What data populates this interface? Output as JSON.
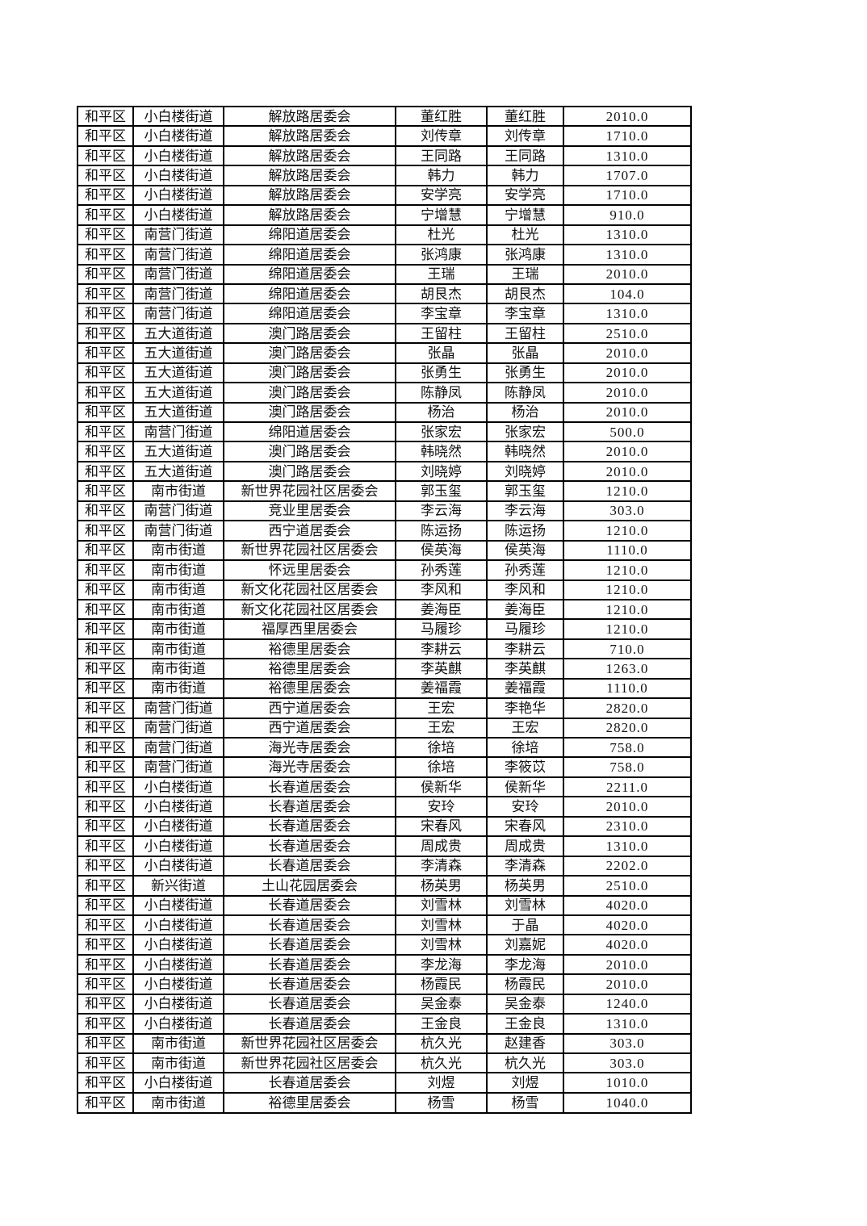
{
  "page": {
    "background_color": "#ffffff",
    "table_border_color": "#000000",
    "text_color": "#111111"
  },
  "table": {
    "column_keys": [
      "district",
      "street",
      "committee",
      "name-a",
      "name-b",
      "amount"
    ],
    "rows": [
      [
        "和平区",
        "小白楼街道",
        "解放路居委会",
        "董红胜",
        "董红胜",
        "2010.0"
      ],
      [
        "和平区",
        "小白楼街道",
        "解放路居委会",
        "刘传章",
        "刘传章",
        "1710.0"
      ],
      [
        "和平区",
        "小白楼街道",
        "解放路居委会",
        "王同路",
        "王同路",
        "1310.0"
      ],
      [
        "和平区",
        "小白楼街道",
        "解放路居委会",
        "韩力",
        "韩力",
        "1707.0"
      ],
      [
        "和平区",
        "小白楼街道",
        "解放路居委会",
        "安学亮",
        "安学亮",
        "1710.0"
      ],
      [
        "和平区",
        "小白楼街道",
        "解放路居委会",
        "宁增慧",
        "宁增慧",
        "910.0"
      ],
      [
        "和平区",
        "南营门街道",
        "绵阳道居委会",
        "杜光",
        "杜光",
        "1310.0"
      ],
      [
        "和平区",
        "南营门街道",
        "绵阳道居委会",
        "张鸿康",
        "张鸿康",
        "1310.0"
      ],
      [
        "和平区",
        "南营门街道",
        "绵阳道居委会",
        "王瑞",
        "王瑞",
        "2010.0"
      ],
      [
        "和平区",
        "南营门街道",
        "绵阳道居委会",
        "胡艮杰",
        "胡艮杰",
        "104.0"
      ],
      [
        "和平区",
        "南营门街道",
        "绵阳道居委会",
        "李宝章",
        "李宝章",
        "1310.0"
      ],
      [
        "和平区",
        "五大道街道",
        "澳门路居委会",
        "王留柱",
        "王留柱",
        "2510.0"
      ],
      [
        "和平区",
        "五大道街道",
        "澳门路居委会",
        "张晶",
        "张晶",
        "2010.0"
      ],
      [
        "和平区",
        "五大道街道",
        "澳门路居委会",
        "张勇生",
        "张勇生",
        "2010.0"
      ],
      [
        "和平区",
        "五大道街道",
        "澳门路居委会",
        "陈静凤",
        "陈静凤",
        "2010.0"
      ],
      [
        "和平区",
        "五大道街道",
        "澳门路居委会",
        "杨治",
        "杨治",
        "2010.0"
      ],
      [
        "和平区",
        "南营门街道",
        "绵阳道居委会",
        "张家宏",
        "张家宏",
        "500.0"
      ],
      [
        "和平区",
        "五大道街道",
        "澳门路居委会",
        "韩晓然",
        "韩晓然",
        "2010.0"
      ],
      [
        "和平区",
        "五大道街道",
        "澳门路居委会",
        "刘晓婷",
        "刘晓婷",
        "2010.0"
      ],
      [
        "和平区",
        "南市街道",
        "新世界花园社区居委会",
        "郭玉玺",
        "郭玉玺",
        "1210.0"
      ],
      [
        "和平区",
        "南营门街道",
        "竞业里居委会",
        "李云海",
        "李云海",
        "303.0"
      ],
      [
        "和平区",
        "南营门街道",
        "西宁道居委会",
        "陈运扬",
        "陈运扬",
        "1210.0"
      ],
      [
        "和平区",
        "南市街道",
        "新世界花园社区居委会",
        "侯英海",
        "侯英海",
        "1110.0"
      ],
      [
        "和平区",
        "南市街道",
        "怀远里居委会",
        "孙秀莲",
        "孙秀莲",
        "1210.0"
      ],
      [
        "和平区",
        "南市街道",
        "新文化花园社区居委会",
        "李风和",
        "李风和",
        "1210.0"
      ],
      [
        "和平区",
        "南市街道",
        "新文化花园社区居委会",
        "姜海臣",
        "姜海臣",
        "1210.0"
      ],
      [
        "和平区",
        "南市街道",
        "福厚西里居委会",
        "马履珍",
        "马履珍",
        "1210.0"
      ],
      [
        "和平区",
        "南市街道",
        "裕德里居委会",
        "李耕云",
        "李耕云",
        "710.0"
      ],
      [
        "和平区",
        "南市街道",
        "裕德里居委会",
        "李英麒",
        "李英麒",
        "1263.0"
      ],
      [
        "和平区",
        "南市街道",
        "裕德里居委会",
        "姜福霞",
        "姜福霞",
        "1110.0"
      ],
      [
        "和平区",
        "南营门街道",
        "西宁道居委会",
        "王宏",
        "李艳华",
        "2820.0"
      ],
      [
        "和平区",
        "南营门街道",
        "西宁道居委会",
        "王宏",
        "王宏",
        "2820.0"
      ],
      [
        "和平区",
        "南营门街道",
        "海光寺居委会",
        "徐培",
        "徐培",
        "758.0"
      ],
      [
        "和平区",
        "南营门街道",
        "海光寺居委会",
        "徐培",
        "李筱苡",
        "758.0"
      ],
      [
        "和平区",
        "小白楼街道",
        "长春道居委会",
        "侯新华",
        "侯新华",
        "2211.0"
      ],
      [
        "和平区",
        "小白楼街道",
        "长春道居委会",
        "安玲",
        "安玲",
        "2010.0"
      ],
      [
        "和平区",
        "小白楼街道",
        "长春道居委会",
        "宋春风",
        "宋春风",
        "2310.0"
      ],
      [
        "和平区",
        "小白楼街道",
        "长春道居委会",
        "周成贵",
        "周成贵",
        "1310.0"
      ],
      [
        "和平区",
        "小白楼街道",
        "长春道居委会",
        "李清森",
        "李清森",
        "2202.0"
      ],
      [
        "和平区",
        "新兴街道",
        "土山花园居委会",
        "杨英男",
        "杨英男",
        "2510.0"
      ],
      [
        "和平区",
        "小白楼街道",
        "长春道居委会",
        "刘雪林",
        "刘雪林",
        "4020.0"
      ],
      [
        "和平区",
        "小白楼街道",
        "长春道居委会",
        "刘雪林",
        "于晶",
        "4020.0"
      ],
      [
        "和平区",
        "小白楼街道",
        "长春道居委会",
        "刘雪林",
        "刘嘉妮",
        "4020.0"
      ],
      [
        "和平区",
        "小白楼街道",
        "长春道居委会",
        "李龙海",
        "李龙海",
        "2010.0"
      ],
      [
        "和平区",
        "小白楼街道",
        "长春道居委会",
        "杨霞民",
        "杨霞民",
        "2010.0"
      ],
      [
        "和平区",
        "小白楼街道",
        "长春道居委会",
        "吴金泰",
        "吴金泰",
        "1240.0"
      ],
      [
        "和平区",
        "小白楼街道",
        "长春道居委会",
        "王金良",
        "王金良",
        "1310.0"
      ],
      [
        "和平区",
        "南市街道",
        "新世界花园社区居委会",
        "杭久光",
        "赵建香",
        "303.0"
      ],
      [
        "和平区",
        "南市街道",
        "新世界花园社区居委会",
        "杭久光",
        "杭久光",
        "303.0"
      ],
      [
        "和平区",
        "小白楼街道",
        "长春道居委会",
        "刘煜",
        "刘煜",
        "1010.0"
      ],
      [
        "和平区",
        "南市街道",
        "裕德里居委会",
        "杨雪",
        "杨雪",
        "1040.0"
      ]
    ]
  }
}
